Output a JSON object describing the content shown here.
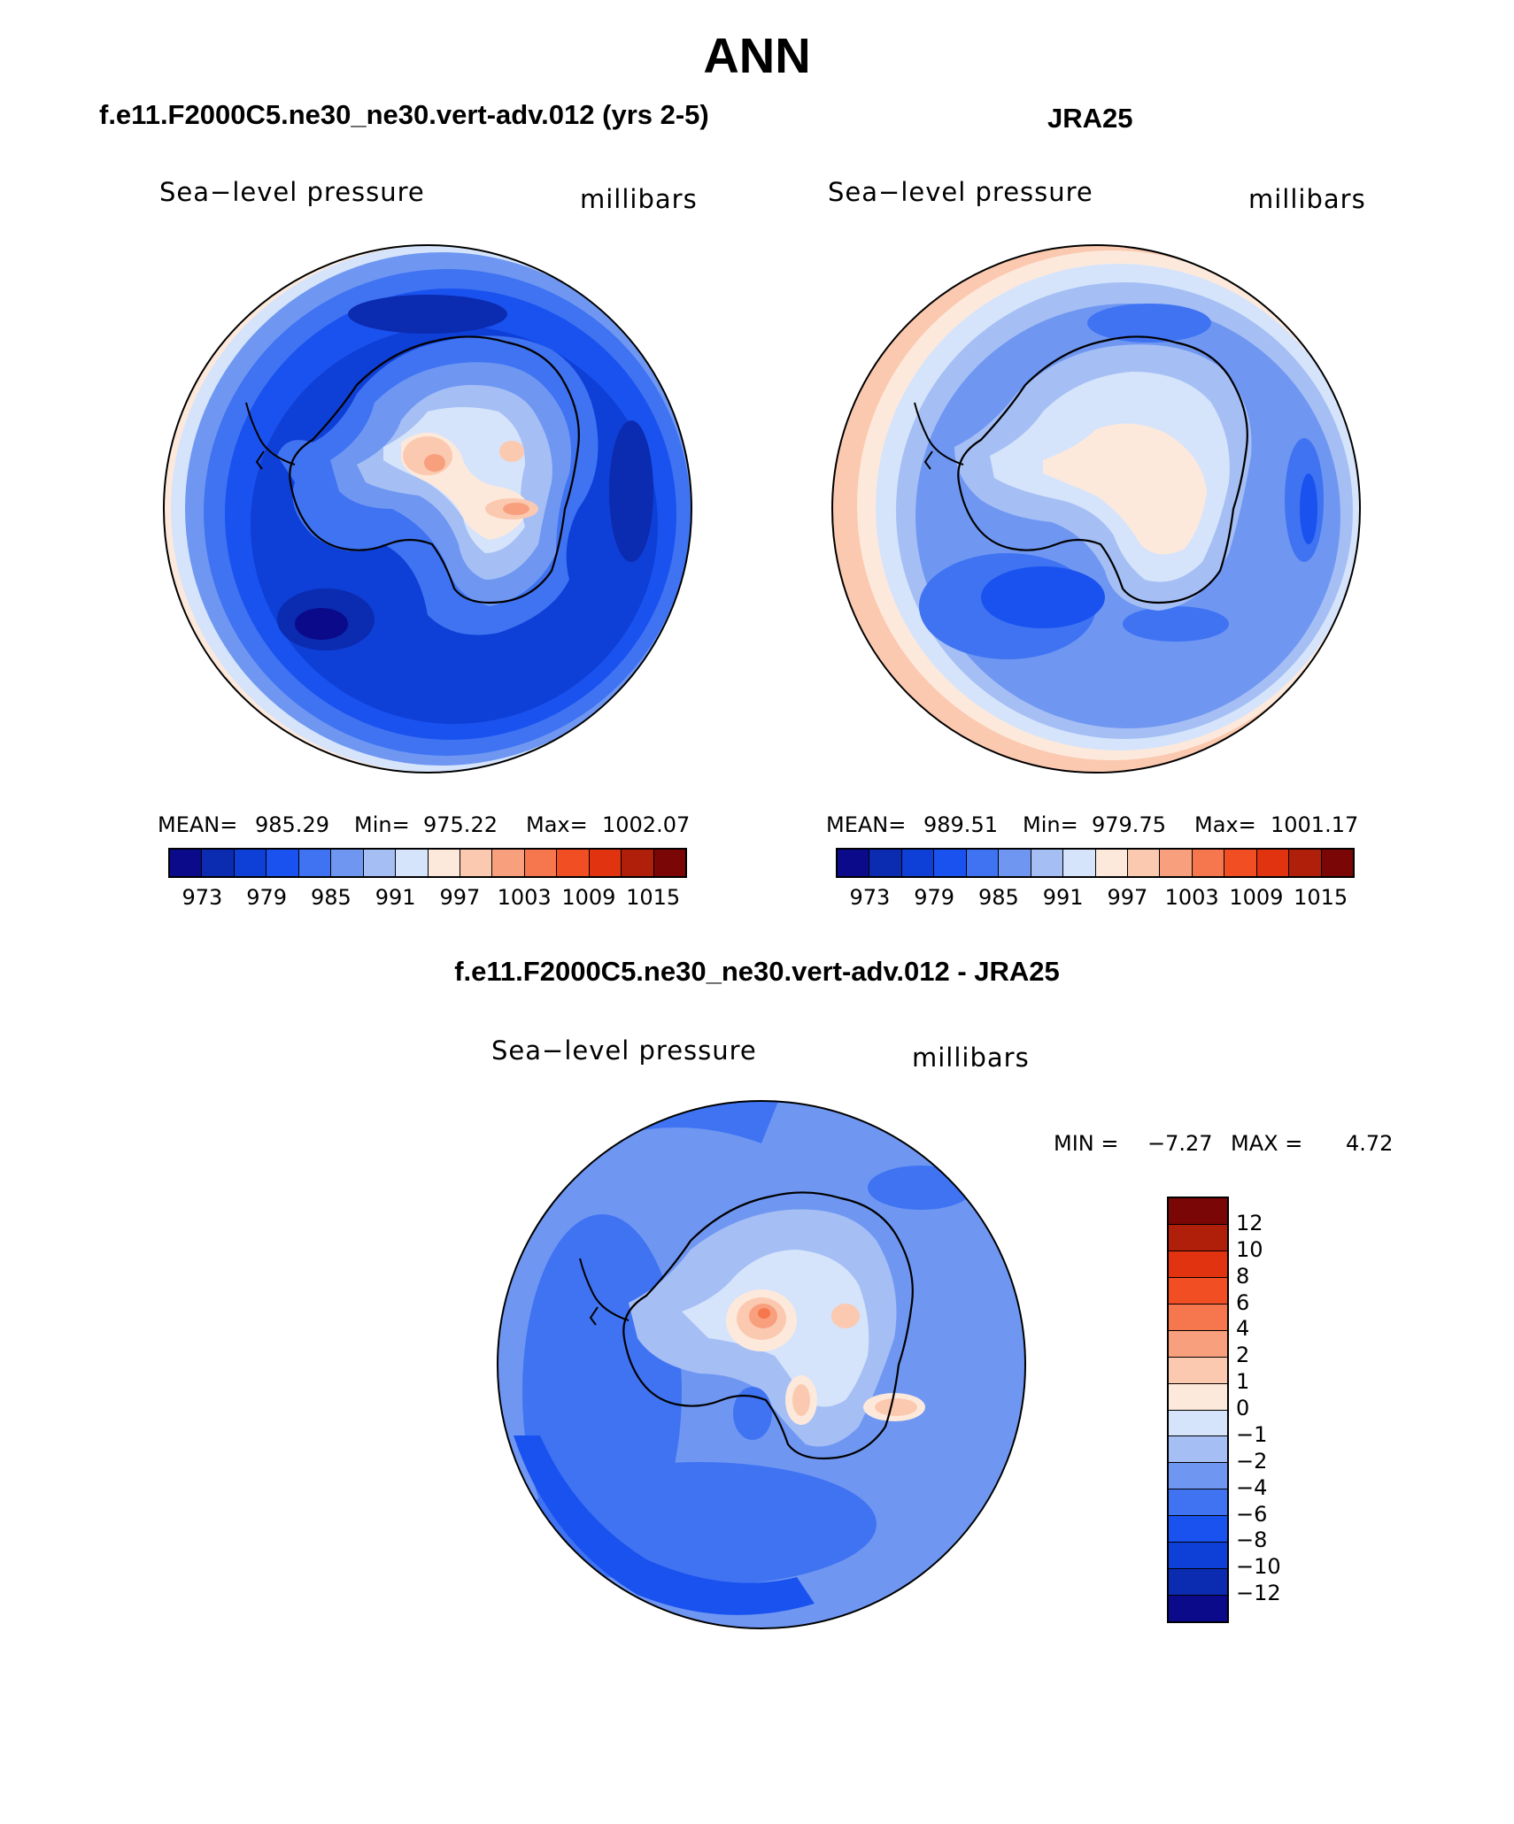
{
  "title": "ANN",
  "panels": {
    "model": {
      "title": "f.e11.F2000C5.ne30_ne30.vert-adv.012 (yrs 2-5)",
      "variable": "Sea−level pressure",
      "units": "millibars",
      "mean_label": "MEAN=",
      "mean": "985.29",
      "min_label": "Min=",
      "min": "975.22",
      "max_label": "Max=",
      "max": "1002.07"
    },
    "obs": {
      "title": "JRA25",
      "variable": "Sea−level pressure",
      "units": "millibars",
      "mean_label": "MEAN=",
      "mean": "989.51",
      "min_label": "Min=",
      "min": "979.75",
      "max_label": "Max=",
      "max": "1001.17"
    },
    "diff": {
      "title": "f.e11.F2000C5.ne30_ne30.vert-adv.012 - JRA25",
      "variable": "Sea−level pressure",
      "units": "millibars",
      "min_label": "MIN =",
      "min": "−7.27",
      "max_label": "MAX =",
      "max": "4.72"
    }
  },
  "colorbar_abs": {
    "ticks": [
      "973",
      "979",
      "985",
      "991",
      "997",
      "1003",
      "1009",
      "1015"
    ],
    "colors": [
      "#0a0a8a",
      "#0b2bb0",
      "#0e3fd6",
      "#1a52ef",
      "#3f73f2",
      "#6f97f2",
      "#a5bff5",
      "#d5e4fb",
      "#fde9dc",
      "#fbc9b0",
      "#f8a07d",
      "#f6764d",
      "#f14e24",
      "#e1330f",
      "#b01f0a",
      "#7b0606"
    ]
  },
  "colorbar_diff": {
    "ticks": [
      "12",
      "10",
      "8",
      "6",
      "4",
      "2",
      "1",
      "0",
      "−1",
      "−2",
      "−4",
      "−6",
      "−8",
      "−10",
      "−12"
    ],
    "colors": [
      "#7b0606",
      "#b01f0a",
      "#e1330f",
      "#f14e24",
      "#f6764d",
      "#f8a07d",
      "#fbc9b0",
      "#fde9dc",
      "#d5e4fb",
      "#a5bff5",
      "#6f97f2",
      "#3f73f2",
      "#1a52ef",
      "#0e3fd6",
      "#0b2bb0",
      "#0a0a8a"
    ]
  }
}
